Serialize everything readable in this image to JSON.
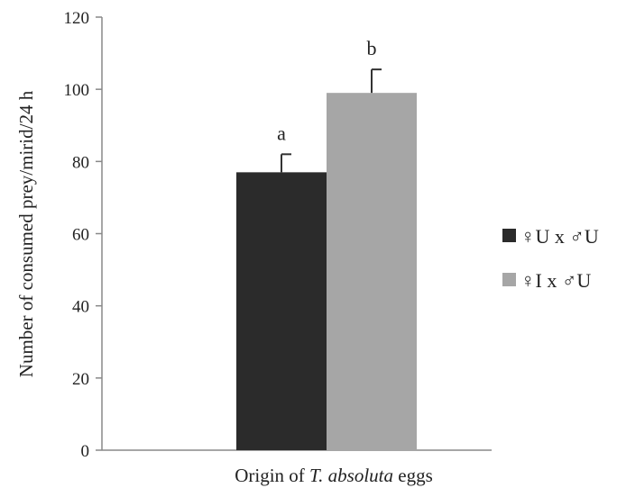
{
  "chart_data": {
    "type": "bar",
    "title": "",
    "ylabel": "Number of consumed prey/mirid/24 h",
    "xlabel": {
      "prefix": "Origin of ",
      "italic": "T. absoluta",
      "suffix": " eggs"
    },
    "ylim": [
      0,
      120
    ],
    "yticks": [
      0,
      20,
      40,
      60,
      80,
      100,
      120
    ],
    "grid": false,
    "legend_position": "right",
    "series": [
      {
        "name": "♀U x ♂U",
        "value": 77,
        "error": 5,
        "letter": "a",
        "color": "#2b2b2b"
      },
      {
        "name": "♀I x ♂U",
        "value": 99,
        "error": 6.5,
        "letter": "b",
        "color": "#a6a6a6"
      }
    ]
  }
}
